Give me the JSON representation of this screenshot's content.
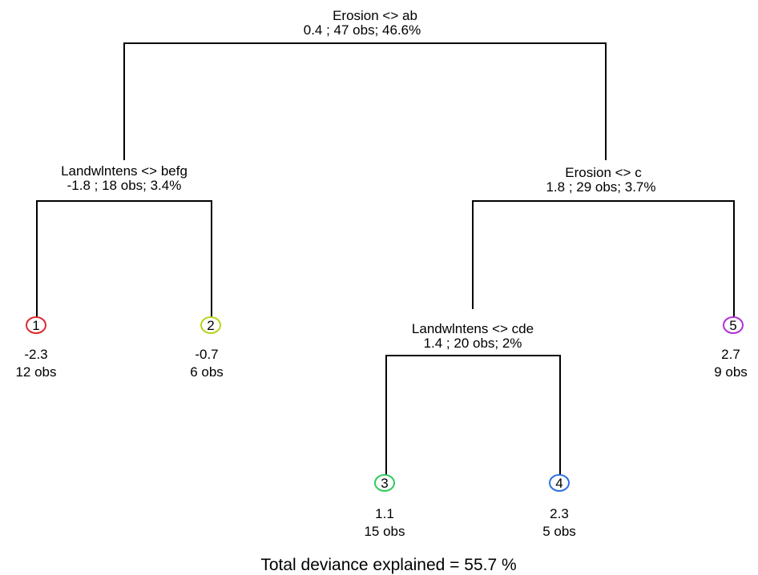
{
  "nodes": [
    {
      "id": "root",
      "split": "Erosion <> ab",
      "stats": "0.4 ; 47 obs; 46.6%"
    },
    {
      "id": "left",
      "split": "Landwlntens <> befg",
      "stats": "-1.8 ; 18 obs; 3.4%"
    },
    {
      "id": "right",
      "split": "Erosion <> c",
      "stats": "1.8 ; 29 obs; 3.7%"
    },
    {
      "id": "right-left",
      "split": "Landwlntens <> cde",
      "stats": "1.4 ; 20 obs; 2%"
    }
  ],
  "leaves": [
    {
      "number": "1",
      "value": "-2.3",
      "obs": "12 obs",
      "color": "#e0282e"
    },
    {
      "number": "2",
      "value": "-0.7",
      "obs": "6 obs",
      "color": "#b5d41f"
    },
    {
      "number": "3",
      "value": "1.1",
      "obs": "15 obs",
      "color": "#2ecc5b"
    },
    {
      "number": "4",
      "value": "2.3",
      "obs": "5 obs",
      "color": "#2f6fe0"
    },
    {
      "number": "5",
      "value": "2.7",
      "obs": "9 obs",
      "color": "#b22fd6"
    }
  ],
  "footer": {
    "deviance_text": "Total deviance explained = 55.7 %"
  }
}
